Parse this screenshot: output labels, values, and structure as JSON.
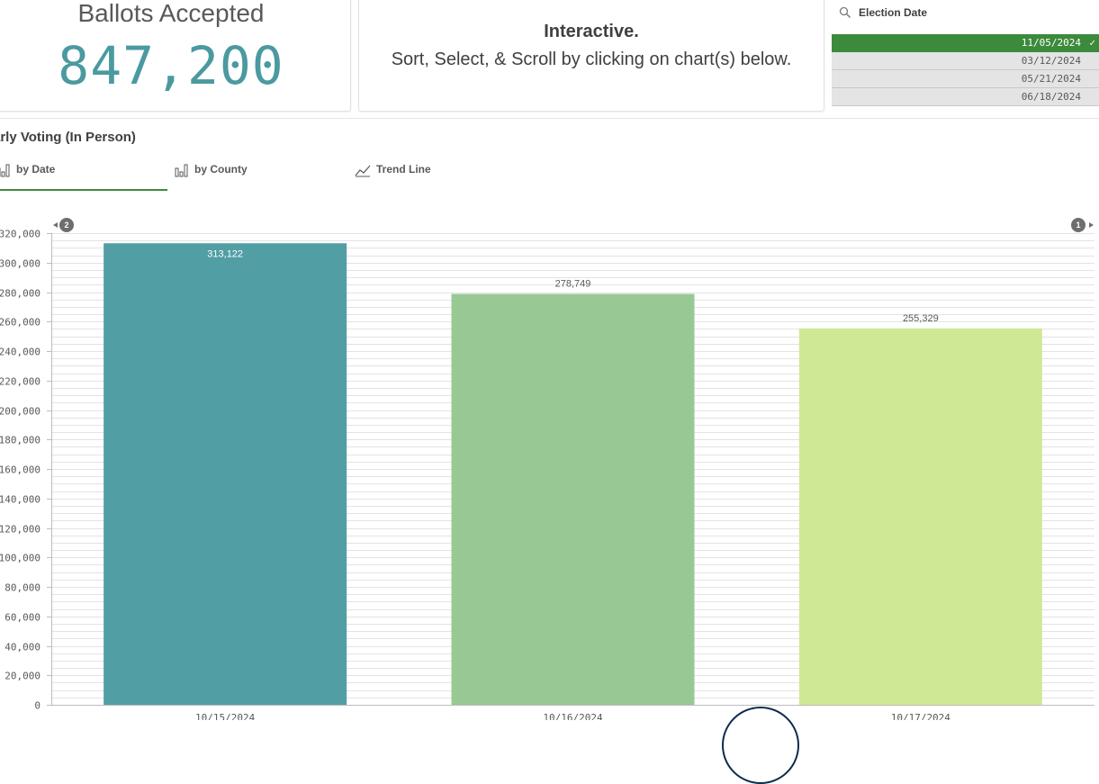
{
  "kpi": {
    "title": "Ballots Accepted",
    "value": "847,200",
    "value_color": "#4a9aa0"
  },
  "info": {
    "title": "Interactive.",
    "subtitle": "Sort, Select, & Scroll by clicking on chart(s) below."
  },
  "filter": {
    "title": "Election Date",
    "icon": "search-icon",
    "selected_color": "#3c8a3c",
    "items": [
      {
        "label": "11/05/2024",
        "selected": true
      },
      {
        "label": "03/12/2024",
        "selected": false
      },
      {
        "label": "05/21/2024",
        "selected": false
      },
      {
        "label": "06/18/2024",
        "selected": false
      }
    ]
  },
  "chart_title": "arly Voting (In Person)",
  "tabs": [
    {
      "label": "by Date",
      "icon": "bar-chart-icon",
      "active": true
    },
    {
      "label": "by County",
      "icon": "bar-chart-icon",
      "active": false
    },
    {
      "label": "Trend Line",
      "icon": "line-chart-icon",
      "active": false
    }
  ],
  "nav": {
    "left_count": "2",
    "right_count": "1"
  },
  "chart_data": {
    "type": "bar",
    "title": "Early Voting (In Person)",
    "categories": [
      "10/15/2024",
      "10/16/2024",
      "10/17/2024"
    ],
    "values": [
      313122,
      278749,
      255329
    ],
    "value_labels": [
      "313,122",
      "278,749",
      "255,329"
    ],
    "colors": [
      "#519ea5",
      "#98c995",
      "#cfe896"
    ],
    "ylim": [
      0,
      320000
    ],
    "yticks": [
      0,
      20000,
      40000,
      60000,
      80000,
      100000,
      120000,
      140000,
      160000,
      180000,
      200000,
      220000,
      240000,
      260000,
      280000,
      300000,
      320000
    ],
    "ytick_labels": [
      "0",
      "20,000",
      "40,000",
      "60,000",
      "80,000",
      "100,000",
      "120,000",
      "140,000",
      "160,000",
      "180,000",
      "200,000",
      "220,000",
      "240,000",
      "260,000",
      "280,000",
      "300,000",
      "320,000"
    ],
    "grid": true
  }
}
